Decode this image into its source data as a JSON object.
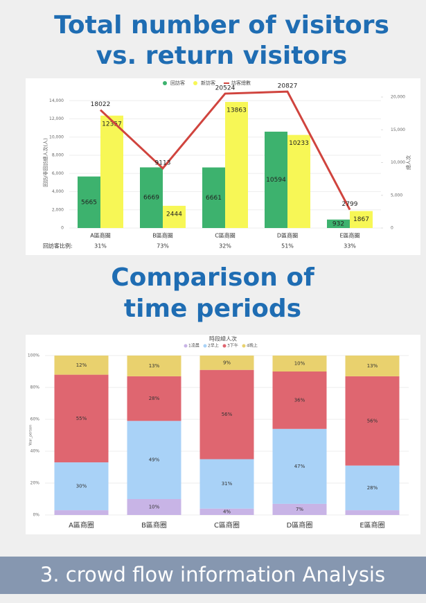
{
  "heading_1": [
    "Total number of visitors",
    "vs. return visitors"
  ],
  "heading_2": [
    "Comparison of",
    "time periods"
  ],
  "footer": "3. crowd flow information Analysis",
  "chart_data": [
    {
      "type": "combo",
      "categories": [
        "A區商圈",
        "B區商圈",
        "C區商圈",
        "D區商圈",
        "E區商圈"
      ],
      "series": [
        {
          "name": "回訪客",
          "type": "bar",
          "color": "#3db26e",
          "values": [
            5665,
            6669,
            6661,
            10594,
            932
          ]
        },
        {
          "name": "新訪客",
          "type": "bar",
          "color": "#f7f756",
          "values": [
            12357,
            2444,
            13863,
            10233,
            1867
          ]
        },
        {
          "name": "訪客總數",
          "type": "line",
          "axis": "y2",
          "color": "#d0443e",
          "values": [
            18022,
            9113,
            20524,
            20827,
            2799
          ]
        }
      ],
      "y_label": "回訪/非回訪總人次(人)",
      "y2_label": "總人次",
      "ylim": [
        0,
        14400
      ],
      "yticks": [
        0,
        {
          "value": 2000,
          "label": "2,000"
        },
        {
          "value": 4000,
          "label": "4,000"
        },
        {
          "value": 6000,
          "label": "6,000"
        },
        {
          "value": 8000,
          "label": "8,000"
        },
        {
          "value": 10000,
          "label": "10,000"
        },
        {
          "value": 12000,
          "label": "12,000"
        },
        {
          "value": 14000,
          "label": "14,000"
        }
      ],
      "y2lim": [
        0,
        20000
      ],
      "y2ticks": [
        0,
        {
          "value": 5000,
          "label": "5,000"
        },
        {
          "value": 10000,
          "label": "10,000"
        },
        {
          "value": 15000,
          "label": "15,000"
        },
        {
          "value": 20000,
          "label": "20,000"
        }
      ],
      "grid": true,
      "ratio_row": {
        "label": "回訪客比例:",
        "values": [
          "31%",
          "73%",
          "32%",
          "51%",
          "33%"
        ]
      }
    },
    {
      "type": "stacked_bar_100",
      "title": "時段總人次",
      "y_label": "Year_person",
      "categories": [
        "A區商圈",
        "B區商圈",
        "C區商圈",
        "D區商圈",
        "E區商圈"
      ],
      "series": [
        {
          "name": "1凌晨",
          "color": "#c8b4e6",
          "values": [
            3,
            10,
            4,
            7,
            3
          ],
          "value_labels": [
            null,
            "10%",
            "4%",
            "7%",
            null
          ]
        },
        {
          "name": "2早上",
          "color": "#a9d2f7",
          "values": [
            30,
            49,
            31,
            47,
            28
          ],
          "value_labels": [
            "30%",
            "49%",
            "31%",
            "47%",
            "28%"
          ]
        },
        {
          "name": "3下午",
          "color": "#df6670",
          "values": [
            55,
            28,
            56,
            36,
            56
          ],
          "value_labels": [
            "55%",
            "28%",
            "56%",
            "36%",
            "56%"
          ]
        },
        {
          "name": "4晚上",
          "color": "#e9d16e",
          "values": [
            12,
            13,
            9,
            10,
            13
          ],
          "value_labels": [
            "12%",
            "13%",
            "9%",
            "10%",
            "13%"
          ]
        }
      ],
      "ylim": [
        0,
        100
      ],
      "yticks": [
        {
          "value": 0,
          "label": "0%"
        },
        {
          "value": 20,
          "label": "20%"
        },
        {
          "value": 40,
          "label": "40%"
        },
        {
          "value": 60,
          "label": "60%"
        },
        {
          "value": 80,
          "label": "80%"
        },
        {
          "value": 100,
          "label": "100%"
        }
      ],
      "grid": true
    }
  ]
}
